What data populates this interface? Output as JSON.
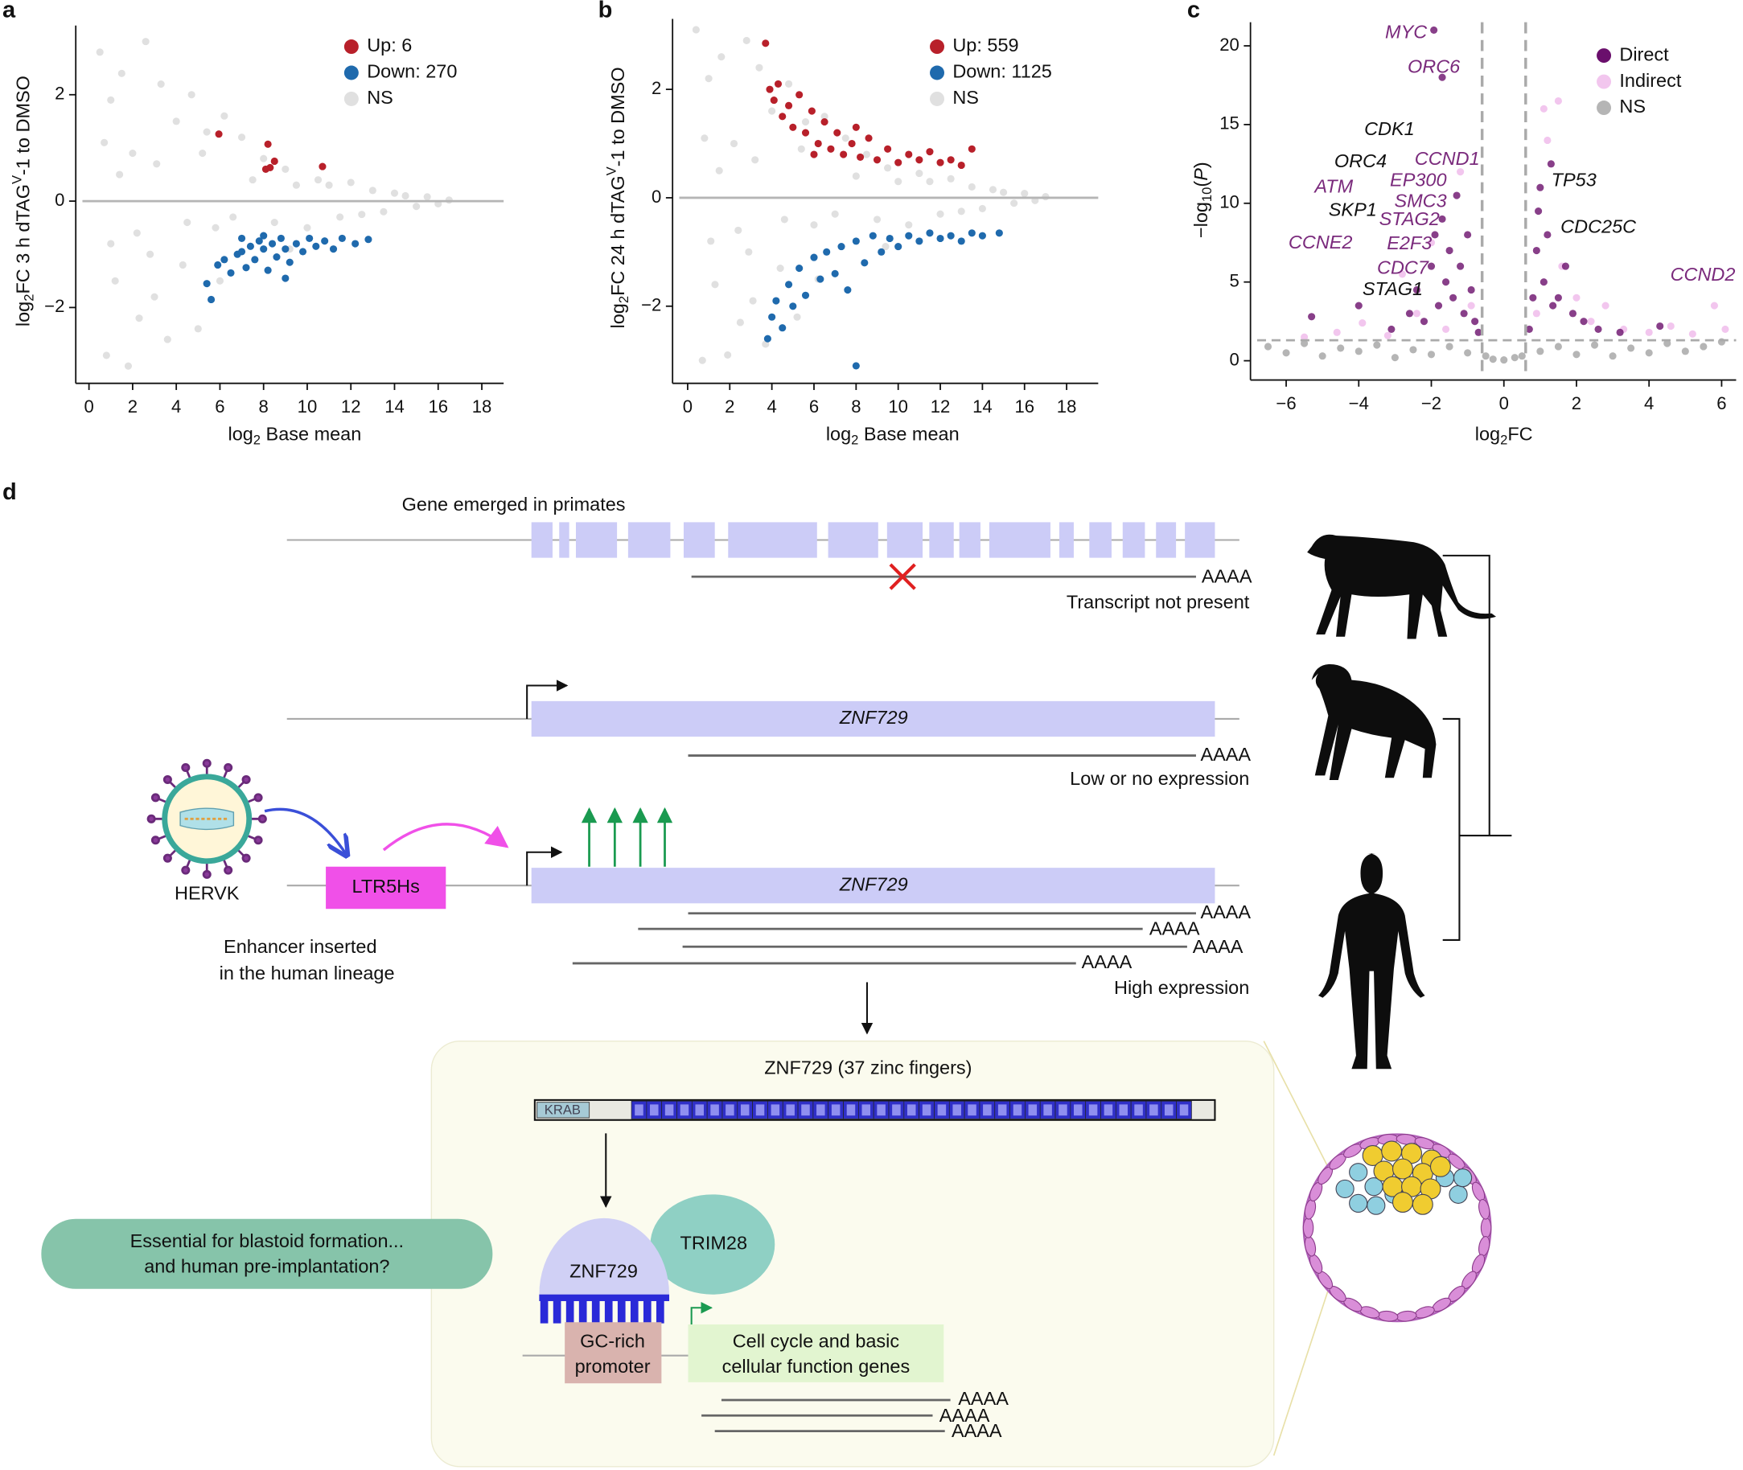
{
  "chart_data": [
    {
      "type": "scatter",
      "panel": "a",
      "xlabel": [
        "log",
        "2",
        " Base mean"
      ],
      "ylabel": [
        "log",
        "2",
        "FC 3 h dTAG",
        "V",
        "-1 to DMSO"
      ],
      "xlim": [
        -0.3,
        19
      ],
      "ylim": [
        -3.3,
        3.3
      ],
      "xticks": [
        0,
        2,
        4,
        6,
        8,
        10,
        12,
        14,
        16,
        18
      ],
      "yticks": [
        {
          "value": -2,
          "label": "−2"
        },
        0,
        2
      ],
      "hline": 0,
      "legend": "upper right",
      "grid": false,
      "series": [
        {
          "name": "Up: 6",
          "color": "#b8202a",
          "x": [
            5.95,
            8.2,
            8.5,
            8.3,
            10.7,
            8.1
          ],
          "values": [
            1.26,
            1.07,
            0.75,
            0.63,
            0.65,
            0.6
          ]
        },
        {
          "name": "Down: 270",
          "color": "#1f6aad",
          "x": [
            5.4,
            5.6,
            5.9,
            6.2,
            6.5,
            6.8,
            7.0,
            7.2,
            7.4,
            7.6,
            7.8,
            8.0,
            8.2,
            8.4,
            8.6,
            8.8,
            9.0,
            9.2,
            9.5,
            9.8,
            10.1,
            10.4,
            10.8,
            11.2,
            11.6,
            12.2,
            12.8,
            8.0,
            9.0,
            7.0
          ],
          "values": [
            -1.55,
            -1.85,
            -1.2,
            -1.1,
            -1.35,
            -1.0,
            -0.95,
            -1.25,
            -0.85,
            -1.1,
            -0.75,
            -0.9,
            -1.3,
            -0.8,
            -1.05,
            -0.7,
            -0.9,
            -1.15,
            -0.8,
            -0.95,
            -0.7,
            -0.85,
            -0.75,
            -0.9,
            -0.7,
            -0.8,
            -0.72,
            -0.65,
            -1.45,
            -0.7
          ]
        },
        {
          "name": "NS",
          "color": "#e0e0e0",
          "x": [
            0.5,
            0.8,
            1.0,
            1.2,
            1.5,
            1.8,
            2.0,
            2.3,
            2.6,
            3.0,
            3.3,
            3.6,
            4.0,
            4.3,
            4.7,
            5.0,
            5.4,
            5.8,
            6.2,
            6.6,
            7.0,
            7.5,
            8.0,
            8.5,
            9.0,
            9.5,
            10,
            10.5,
            11,
            11.5,
            12,
            12.5,
            13,
            13.5,
            14,
            14.5,
            15,
            15.5,
            16,
            16.5,
            1.0,
            1.4,
            2.2,
            3.1,
            4.5,
            6.0,
            0.7,
            2.8,
            5.2,
            9.2
          ],
          "values": [
            2.8,
            -2.9,
            1.9,
            -1.5,
            2.4,
            -3.1,
            0.9,
            -2.2,
            3.0,
            -1.8,
            2.2,
            -2.6,
            1.5,
            -1.2,
            2.0,
            -2.4,
            1.3,
            -0.5,
            1.6,
            -0.3,
            1.2,
            0.4,
            0.8,
            -0.4,
            0.6,
            0.3,
            -0.5,
            0.4,
            0.3,
            -0.3,
            0.35,
            -0.25,
            0.2,
            -0.2,
            0.15,
            0.1,
            -0.1,
            0.08,
            -0.05,
            0.02,
            -0.8,
            0.5,
            -0.6,
            0.7,
            -0.4,
            -1.5,
            1.1,
            -1.0,
            0.9,
            -0.9
          ]
        }
      ]
    },
    {
      "type": "scatter",
      "panel": "b",
      "xlabel": [
        "log",
        "2",
        " Base mean"
      ],
      "ylabel": [
        "log",
        "2",
        "FC 24 h dTAG",
        "V",
        "-1 to DMSO"
      ],
      "xlim": [
        -0.4,
        19.5
      ],
      "ylim": [
        -3.3,
        3.3
      ],
      "xticks": [
        0,
        2,
        4,
        6,
        8,
        10,
        12,
        14,
        16,
        18
      ],
      "yticks": [
        {
          "value": -2,
          "label": "−2"
        },
        0,
        2
      ],
      "hline": 0,
      "legend": "upper right",
      "grid": false,
      "series": [
        {
          "name": "Up: 559",
          "color": "#b8202a",
          "x": [
            3.7,
            3.9,
            4.1,
            4.3,
            4.5,
            4.8,
            5.0,
            5.3,
            5.6,
            5.9,
            6.2,
            6.5,
            6.8,
            7.1,
            7.4,
            7.8,
            8.2,
            8.6,
            9.0,
            9.5,
            10,
            10.5,
            11,
            11.5,
            12,
            12.5,
            13,
            13.5,
            6.0,
            8.0
          ],
          "values": [
            2.85,
            2.0,
            1.8,
            2.1,
            1.5,
            1.7,
            1.3,
            1.9,
            1.2,
            1.6,
            1.0,
            1.4,
            0.9,
            1.2,
            0.8,
            1.0,
            0.75,
            1.1,
            0.7,
            0.9,
            0.65,
            0.8,
            0.7,
            0.85,
            0.65,
            0.7,
            0.6,
            0.9,
            0.8,
            1.3
          ]
        },
        {
          "name": "Down: 1125",
          "color": "#1f6aad",
          "x": [
            3.8,
            4.0,
            4.2,
            4.5,
            4.8,
            5.0,
            5.3,
            5.6,
            6.0,
            6.3,
            6.6,
            7.0,
            7.3,
            7.6,
            8.0,
            8.4,
            8.8,
            9.2,
            9.6,
            10,
            10.5,
            11,
            11.5,
            12,
            12.5,
            13,
            13.5,
            14,
            14.8,
            8.0
          ],
          "values": [
            -2.6,
            -2.2,
            -1.9,
            -2.4,
            -1.6,
            -2.0,
            -1.3,
            -1.8,
            -1.1,
            -1.5,
            -1.0,
            -1.4,
            -0.9,
            -1.7,
            -0.8,
            -1.2,
            -0.7,
            -1.0,
            -0.75,
            -0.9,
            -0.7,
            -0.8,
            -0.65,
            -0.75,
            -0.7,
            -0.8,
            -0.65,
            -0.7,
            -0.65,
            -3.1
          ]
        },
        {
          "name": "NS",
          "color": "#e0e0e0",
          "x": [
            0.4,
            0.7,
            1.0,
            1.3,
            1.6,
            1.9,
            2.2,
            2.5,
            2.8,
            3.1,
            3.4,
            3.7,
            4.0,
            4.4,
            4.8,
            5.2,
            5.6,
            6.0,
            6.5,
            7.0,
            7.5,
            8.0,
            8.5,
            9.0,
            9.5,
            10,
            10.5,
            11,
            11.5,
            12,
            12.5,
            13,
            13.5,
            14,
            14.5,
            15,
            15.5,
            16,
            16.5,
            17,
            1.1,
            1.5,
            2.4,
            3.2,
            4.6,
            6.2,
            0.8,
            2.9,
            5.4,
            9.4
          ],
          "values": [
            3.1,
            -3.0,
            2.2,
            -1.6,
            2.6,
            -2.9,
            1.0,
            -2.3,
            2.9,
            -1.9,
            2.4,
            -2.7,
            1.6,
            -1.3,
            2.1,
            -2.2,
            1.4,
            -0.5,
            1.5,
            -0.3,
            1.1,
            0.4,
            0.8,
            -0.4,
            0.55,
            0.3,
            -0.5,
            0.45,
            0.3,
            -0.3,
            0.35,
            -0.25,
            0.2,
            -0.2,
            0.15,
            0.1,
            -0.1,
            0.08,
            -0.05,
            0.02,
            -0.8,
            0.5,
            -0.6,
            0.7,
            -0.4,
            -1.5,
            1.1,
            -1.0,
            0.9,
            -0.9
          ]
        }
      ]
    },
    {
      "type": "scatter",
      "panel": "c",
      "xlabel": [
        "log",
        "2",
        "FC"
      ],
      "ylabel": [
        "−log",
        "10",
        "(",
        "P",
        ")"
      ],
      "xlim": [
        -6.8,
        6.4
      ],
      "ylim": [
        -0.8,
        21.5
      ],
      "xticks": [
        {
          "value": -6,
          "label": "−6"
        },
        {
          "value": -4,
          "label": "−4"
        },
        {
          "value": -2,
          "label": "−2"
        },
        0,
        2,
        4,
        6
      ],
      "yticks": [
        0,
        5,
        10,
        15,
        20
      ],
      "vlines": [
        -0.6,
        0.6
      ],
      "hline": 1.3,
      "legend": "upper right",
      "grid": false,
      "series": [
        {
          "name": "Direct",
          "color": "#6a0f6c",
          "x": [
            -2.6,
            -2.4,
            -2.2,
            -2.0,
            -1.9,
            -1.8,
            -1.7,
            -1.6,
            -1.5,
            -1.4,
            -1.3,
            -1.2,
            -1.1,
            -1.0,
            -0.9,
            -0.8,
            -0.7,
            -1.93,
            -1.7,
            -3.1,
            -4.0,
            -5.3,
            0.7,
            0.8,
            0.9,
            1.0,
            1.1,
            1.2,
            1.3,
            1.5,
            1.7,
            1.9,
            2.2,
            2.6,
            0.95,
            1.35,
            3.2,
            4.3
          ],
          "values": [
            3.0,
            4.5,
            2.5,
            6.0,
            8.0,
            3.5,
            9.0,
            5.0,
            7.0,
            4.0,
            10.5,
            6.0,
            3.0,
            8.0,
            4.5,
            2.5,
            1.8,
            21,
            18,
            2.0,
            3.5,
            2.8,
            2.0,
            4.0,
            7.0,
            11.0,
            5.0,
            8.0,
            12.5,
            4.0,
            6.0,
            3.0,
            2.5,
            2.0,
            9.5,
            3.5,
            1.8,
            2.2
          ]
        },
        {
          "name": "Indirect",
          "color": "#f2c6ee",
          "x": [
            -5.5,
            -4.6,
            -3.9,
            -3.2,
            -2.8,
            -2.4,
            -2.0,
            -1.6,
            -1.2,
            -0.9,
            0.9,
            1.2,
            1.6,
            2.0,
            2.4,
            2.8,
            3.3,
            4.0,
            4.6,
            5.2,
            5.8,
            6.1,
            1.5,
            1.1
          ],
          "values": [
            1.5,
            1.8,
            2.4,
            1.6,
            5.5,
            3.0,
            7.5,
            2.0,
            12.0,
            3.5,
            3.0,
            14.0,
            6.0,
            4.0,
            2.5,
            3.5,
            2.0,
            1.8,
            2.2,
            1.7,
            3.5,
            2.0,
            16.5,
            16.0
          ]
        },
        {
          "name": "NS",
          "color": "#b5b5b5",
          "x": [
            -6.5,
            -6,
            -5.5,
            -5,
            -4.5,
            -4,
            -3.5,
            -3,
            -2.5,
            -2,
            -1.5,
            -1,
            -0.5,
            0,
            0.5,
            1,
            1.5,
            2,
            2.5,
            3,
            3.5,
            4,
            4.5,
            5,
            5.5,
            6,
            -0.3,
            0.3
          ],
          "values": [
            0.9,
            0.5,
            1.1,
            0.3,
            0.8,
            0.6,
            1.0,
            0.2,
            0.7,
            0.4,
            0.9,
            0.5,
            0.3,
            0.05,
            0.3,
            0.6,
            0.9,
            0.4,
            1.0,
            0.3,
            0.8,
            0.5,
            1.1,
            0.6,
            0.9,
            1.2,
            0.1,
            0.2
          ]
        }
      ],
      "annotations": [
        {
          "text": "MYC",
          "color": "#7a2a7c"
        },
        {
          "text": "ORC6",
          "color": "#7a2a7c"
        },
        {
          "text": "CDK1",
          "color": "#111111"
        },
        {
          "text": "ORC4",
          "color": "#111111"
        },
        {
          "text": "CCND1",
          "color": "#7a2a7c"
        },
        {
          "text": "EP300",
          "color": "#7a2a7c"
        },
        {
          "text": "ATM",
          "color": "#7a2a7c"
        },
        {
          "text": "SMC3",
          "color": "#7a2a7c"
        },
        {
          "text": "SKP1",
          "color": "#111111"
        },
        {
          "text": "STAG2",
          "color": "#7a2a7c"
        },
        {
          "text": "E2F3",
          "color": "#7a2a7c"
        },
        {
          "text": "CCNE2",
          "color": "#7a2a7c"
        },
        {
          "text": "CDC7",
          "color": "#7a2a7c"
        },
        {
          "text": "STAG1",
          "color": "#111111"
        },
        {
          "text": "TP53",
          "color": "#111111"
        },
        {
          "text": "CDC25C",
          "color": "#111111"
        },
        {
          "text": "CCND2",
          "color": "#7a2a7c"
        }
      ]
    }
  ],
  "diagram": {
    "panel": "d",
    "row1": {
      "title": "Gene emerged in primates",
      "polyA": "AAAA",
      "note": "Transcript not present"
    },
    "row2": {
      "gene": "ZNF729",
      "polyA": "AAAA",
      "note": "Low or no expression"
    },
    "row3": {
      "virus": "HERVK",
      "enhancer": "LTR5Hs",
      "enhancer_note": [
        "Enhancer inserted",
        "in the human lineage"
      ],
      "gene": "ZNF729",
      "polyA": [
        "AAAA",
        "AAAA",
        "AAAA",
        "AAAA"
      ],
      "note": "High expression"
    },
    "protein": {
      "title": "ZNF729 (37 zinc fingers)",
      "domain": "KRAB",
      "zinc_fingers": 37,
      "question": [
        "Essential for blastoid formation...",
        "and human pre-implantation?"
      ],
      "binder": "ZNF729",
      "partner": "TRIM28",
      "promoter": [
        "GC-rich",
        "promoter"
      ],
      "targets": [
        "Cell cycle and basic",
        "cellular function genes"
      ],
      "polyA": [
        "AAAA",
        "AAAA",
        "AAAA"
      ]
    }
  }
}
